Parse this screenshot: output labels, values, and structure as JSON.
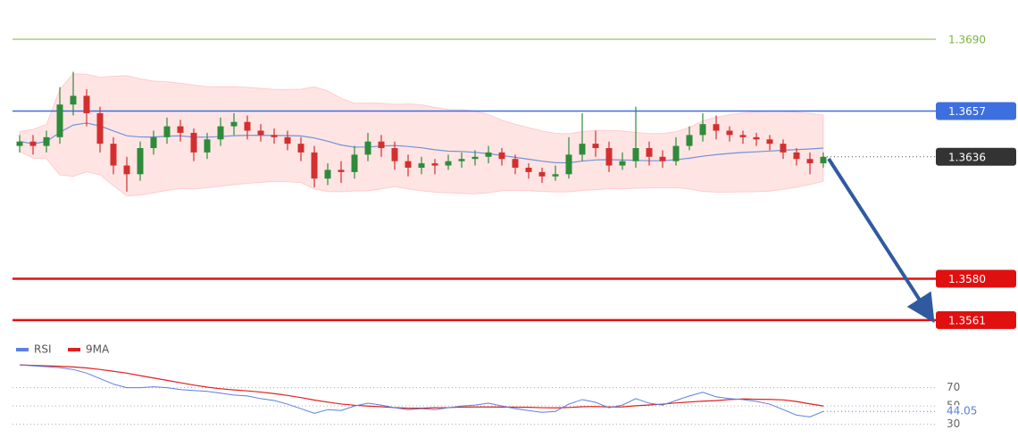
{
  "chart_data": [
    {
      "type": "candlestick",
      "ylim": [
        1.3554,
        1.3708
      ],
      "open": [
        1.3641,
        1.3643,
        1.3641,
        1.3645,
        1.366,
        1.3664,
        1.3656,
        1.3642,
        1.3632,
        1.3628,
        1.364,
        1.3645,
        1.365,
        1.3647,
        1.3638,
        1.3644,
        1.365,
        1.3652,
        1.3648,
        1.3646,
        1.3645,
        1.3642,
        1.3638,
        1.3626,
        1.363,
        1.3629,
        1.3637,
        1.3643,
        1.364,
        1.3634,
        1.3631,
        1.3633,
        1.3632,
        1.3634,
        1.3635,
        1.3636,
        1.3638,
        1.3635,
        1.3631,
        1.3629,
        1.3627,
        1.3628,
        1.3637,
        1.3642,
        1.364,
        1.3632,
        1.3634,
        1.364,
        1.3636,
        1.3634,
        1.3641,
        1.3646,
        1.3651,
        1.3648,
        1.3646,
        1.3645,
        1.3644,
        1.3642,
        1.3638,
        1.3635,
        1.3633
      ],
      "high": [
        1.3646,
        1.3646,
        1.3648,
        1.3668,
        1.3675,
        1.3667,
        1.3659,
        1.3645,
        1.3636,
        1.3643,
        1.3648,
        1.3654,
        1.3653,
        1.3649,
        1.3647,
        1.3654,
        1.3656,
        1.3655,
        1.3651,
        1.3649,
        1.3648,
        1.3645,
        1.3641,
        1.3633,
        1.3634,
        1.3641,
        1.3647,
        1.3646,
        1.3643,
        1.3637,
        1.3636,
        1.3635,
        1.3637,
        1.3638,
        1.3639,
        1.3641,
        1.364,
        1.3637,
        1.3633,
        1.3631,
        1.3632,
        1.3645,
        1.3656,
        1.3648,
        1.3643,
        1.3638,
        1.3659,
        1.3643,
        1.3639,
        1.3645,
        1.365,
        1.3656,
        1.3655,
        1.365,
        1.3648,
        1.3647,
        1.3646,
        1.3644,
        1.364,
        1.3638,
        1.3638
      ],
      "low": [
        1.3638,
        1.3637,
        1.3638,
        1.3642,
        1.3655,
        1.365,
        1.3638,
        1.3628,
        1.362,
        1.3625,
        1.3637,
        1.3642,
        1.3643,
        1.3634,
        1.3635,
        1.3641,
        1.3646,
        1.3644,
        1.3643,
        1.3642,
        1.3639,
        1.3634,
        1.3622,
        1.3623,
        1.3624,
        1.3626,
        1.3634,
        1.3636,
        1.363,
        1.3627,
        1.3628,
        1.3628,
        1.363,
        1.3631,
        1.3632,
        1.3633,
        1.3632,
        1.3628,
        1.3626,
        1.3624,
        1.3625,
        1.3626,
        1.3634,
        1.3636,
        1.3629,
        1.363,
        1.3631,
        1.3632,
        1.3631,
        1.3632,
        1.3639,
        1.3643,
        1.3644,
        1.3643,
        1.3642,
        1.3641,
        1.3639,
        1.3635,
        1.3632,
        1.3628,
        1.3631
      ],
      "close": [
        1.3643,
        1.3641,
        1.3645,
        1.366,
        1.3664,
        1.3656,
        1.3642,
        1.3632,
        1.3628,
        1.364,
        1.3645,
        1.365,
        1.3647,
        1.3638,
        1.3644,
        1.365,
        1.3652,
        1.3648,
        1.3646,
        1.3645,
        1.3642,
        1.3638,
        1.3626,
        1.363,
        1.3629,
        1.3637,
        1.3643,
        1.364,
        1.3634,
        1.3631,
        1.3633,
        1.3632,
        1.3634,
        1.3635,
        1.3636,
        1.3638,
        1.3635,
        1.3631,
        1.3629,
        1.3627,
        1.3628,
        1.3637,
        1.3642,
        1.364,
        1.3632,
        1.3634,
        1.364,
        1.3636,
        1.3634,
        1.3641,
        1.3646,
        1.3651,
        1.3648,
        1.3646,
        1.3645,
        1.3644,
        1.3642,
        1.3638,
        1.3635,
        1.3633,
        1.3636
      ],
      "up_color": "#2e8b3a",
      "down_color": "#d32f2f",
      "levels": [
        {
          "value": 1.369,
          "label": "1.3690",
          "color": "#7cb342",
          "style": "plain"
        },
        {
          "value": 1.3657,
          "label": "1.3657",
          "color": "#3d6fe0",
          "style": "box"
        },
        {
          "value": 1.358,
          "label": "1.3580",
          "color": "#e01010",
          "style": "box"
        },
        {
          "value": 1.3561,
          "label": "1.3561",
          "color": "#e01010",
          "style": "box"
        }
      ],
      "current": {
        "value": 1.3636,
        "label": "1.3636",
        "color": "#333333"
      }
    },
    {
      "type": "line",
      "ylim": [
        11,
        99
      ],
      "yticks": [
        30,
        50,
        70
      ],
      "series": [
        {
          "name": "RSI",
          "color": "#5b7fe0",
          "values": [
            95,
            94,
            93,
            92,
            90,
            86,
            80,
            74,
            70,
            70,
            71,
            70,
            68,
            67,
            66,
            64,
            62,
            61,
            58,
            56,
            52,
            47,
            42,
            46,
            45,
            50,
            53,
            51,
            48,
            46,
            47,
            46,
            48,
            50,
            51,
            53,
            50,
            47,
            45,
            43,
            44,
            52,
            57,
            54,
            48,
            51,
            58,
            53,
            51,
            56,
            61,
            65,
            60,
            58,
            57,
            55,
            52,
            46,
            40,
            38,
            44.05
          ],
          "value_labels": [
            null,
            null,
            null,
            null,
            null,
            null,
            null,
            null,
            null,
            null,
            null,
            null,
            null,
            null,
            null,
            null,
            null,
            null,
            null,
            null,
            null,
            null,
            null,
            null,
            null,
            null,
            null,
            null,
            null,
            null,
            null,
            null,
            null,
            null,
            null,
            null,
            null,
            null,
            null,
            null,
            null,
            null,
            null,
            null,
            null,
            null,
            null,
            null,
            null,
            null,
            null,
            null,
            null,
            null,
            null,
            null,
            null,
            null,
            null,
            null,
            "44.05"
          ]
        },
        {
          "name": "9MA",
          "color": "#e02020"
        }
      ]
    }
  ]
}
